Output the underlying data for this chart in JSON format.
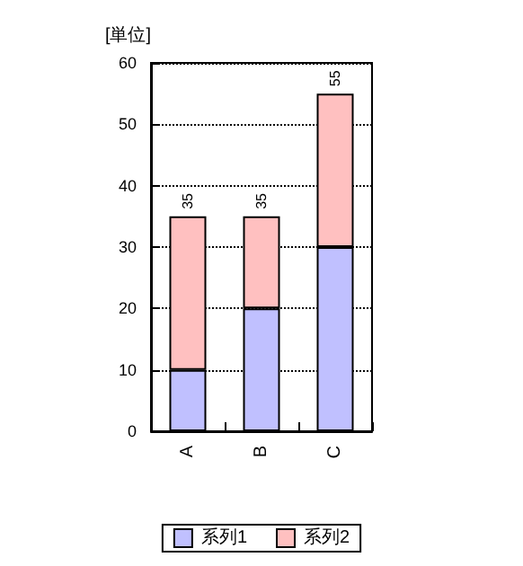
{
  "chart_data": {
    "type": "bar",
    "ylabel": "[単位]",
    "categories": [
      "A",
      "B",
      "C"
    ],
    "stacked": true,
    "series": [
      {
        "name": "系列1",
        "color": "#c0c0ff",
        "values": [
          10,
          20,
          30
        ]
      },
      {
        "name": "系列2",
        "color": "#ffc0c0",
        "values": [
          25,
          15,
          25
        ]
      }
    ],
    "totals": [
      "35",
      "35",
      "55"
    ],
    "ylim": [
      0,
      60
    ],
    "yticks": [
      0,
      10,
      20,
      30,
      40,
      50,
      60
    ],
    "grid": "y",
    "legend": "bottom"
  }
}
